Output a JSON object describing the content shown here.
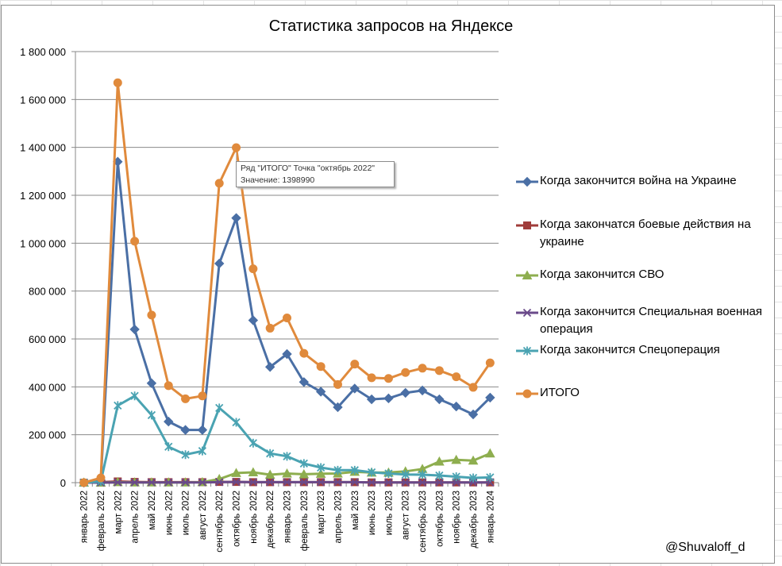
{
  "chart_data": {
    "type": "line",
    "title": "Статистика запросов на Яндексе",
    "xlabel": "",
    "ylabel": "",
    "ylim": [
      0,
      1800000
    ],
    "yticks": [
      0,
      200000,
      400000,
      600000,
      800000,
      1000000,
      1200000,
      1400000,
      1600000,
      1800000
    ],
    "ytick_labels": [
      "0",
      "200 000",
      "400 000",
      "600 000",
      "800 000",
      "1 000 000",
      "1 200 000",
      "1 400 000",
      "1 600 000",
      "1 800 000"
    ],
    "grid": true,
    "legend_position": "right",
    "categories": [
      "январь 2022",
      "февраль 2022",
      "март 2022",
      "апрель 2022",
      "май 2022",
      "июнь 2022",
      "июль 2022",
      "август 2022",
      "сентябрь 2022",
      "октябрь 2022",
      "ноябрь 2022",
      "декабрь 2022",
      "январь 2023",
      "февраль 2023",
      "март 2023",
      "апрель 2023",
      "май 2023",
      "июнь 2023",
      "июль 2023",
      "август 2023",
      "сентябрь 2023",
      "октябрь 2023",
      "ноябрь 2023",
      "декабрь 2023",
      "январь 2024"
    ],
    "series": [
      {
        "name": "Когда закончится война на Украине",
        "color": "#4a6fa5",
        "marker": "diamond",
        "values": [
          0,
          10000,
          1340000,
          640000,
          415000,
          255000,
          220000,
          220000,
          915000,
          1105000,
          678000,
          483000,
          537000,
          420000,
          380000,
          315000,
          393000,
          348000,
          352000,
          375000,
          385000,
          348000,
          318000,
          285000,
          355000
        ]
      },
      {
        "name": "Когда закончатся боевые действия на украине",
        "color": "#a03c3a",
        "marker": "square",
        "values": [
          0,
          2000,
          5000,
          3000,
          2000,
          2000,
          2000,
          2000,
          3000,
          3000,
          2000,
          2000,
          2000,
          2000,
          2000,
          2000,
          2000,
          1000,
          1000,
          1000,
          1000,
          1000,
          1000,
          1000,
          1000
        ]
      },
      {
        "name": "Когда закончится СВО",
        "color": "#8eae4f",
        "marker": "triangle",
        "values": [
          0,
          0,
          2000,
          1000,
          1000,
          1000,
          1000,
          2000,
          15000,
          40000,
          43000,
          33000,
          38000,
          35000,
          37000,
          38000,
          45000,
          42000,
          42000,
          47000,
          57000,
          88000,
          95000,
          92000,
          122000
        ]
      },
      {
        "name": "Когда закончится Специальная военная операция",
        "color": "#6a4a8a",
        "marker": "x",
        "values": [
          0,
          0,
          1000,
          1000,
          1000,
          1000,
          1000,
          1000,
          2000,
          3000,
          2000,
          2000,
          2000,
          2000,
          2000,
          2000,
          2000,
          1000,
          1000,
          1000,
          1000,
          1000,
          1000,
          1000,
          1000
        ]
      },
      {
        "name": "Когда закончится Спецоперация",
        "color": "#4aa3b2",
        "marker": "star",
        "values": [
          0,
          5000,
          322000,
          362000,
          282000,
          150000,
          117000,
          132000,
          312000,
          252000,
          165000,
          122000,
          110000,
          80000,
          63000,
          52000,
          52000,
          43000,
          38000,
          34000,
          33000,
          30000,
          25000,
          20000,
          22000
        ]
      },
      {
        "name": "ИТОГО",
        "color": "#e08a3c",
        "marker": "circle",
        "values": [
          0,
          20000,
          1670000,
          1008000,
          700000,
          405000,
          350000,
          362000,
          1250000,
          1398990,
          893000,
          645000,
          688000,
          540000,
          485000,
          410000,
          495000,
          438000,
          435000,
          460000,
          478000,
          468000,
          442000,
          398000,
          500000
        ]
      }
    ],
    "tooltip": {
      "line1": "Ряд \"ИТОГО\" Точка \"октябрь 2022\"",
      "line2": "Значение: 1398990",
      "series_index": 5,
      "point_index": 9
    }
  },
  "watermark": "@Shuvaloff_d"
}
